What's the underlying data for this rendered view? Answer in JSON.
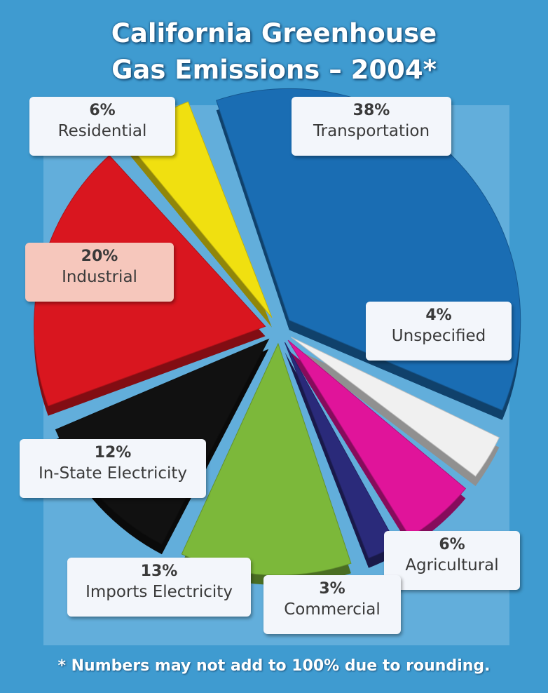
{
  "title_lines": [
    "California Greenhouse",
    "Gas Emissions – 2004*"
  ],
  "footnote": "* Numbers may not add to 100% due to rounding.",
  "colors": {
    "background": "#3f9bd0",
    "transportation": "#1a6db3",
    "unspecified": "#f0f0f0",
    "agricultural": "#e0149a",
    "commercial": "#2a2a7a",
    "imports_electricity": "#7cb83a",
    "in_state_electricity": "#111111",
    "industrial": "#d9161f",
    "residential": "#f0e010"
  },
  "chart_data": {
    "type": "pie",
    "title": "California Greenhouse Gas Emissions – 2004*",
    "slices": [
      {
        "label": "Transportation",
        "value": 38,
        "value_label": "38%"
      },
      {
        "label": "Unspecified",
        "value": 4,
        "value_label": "4%"
      },
      {
        "label": "Agricultural",
        "value": 6,
        "value_label": "6%"
      },
      {
        "label": "Commercial",
        "value": 3,
        "value_label": "3%"
      },
      {
        "label": "Imports Electricity",
        "value": 13,
        "value_label": "13%"
      },
      {
        "label": "In-State Electricity",
        "value": 12,
        "value_label": "12%"
      },
      {
        "label": "Industrial",
        "value": 20,
        "value_label": "20%"
      },
      {
        "label": "Residential",
        "value": 6,
        "value_label": "6%"
      }
    ]
  }
}
